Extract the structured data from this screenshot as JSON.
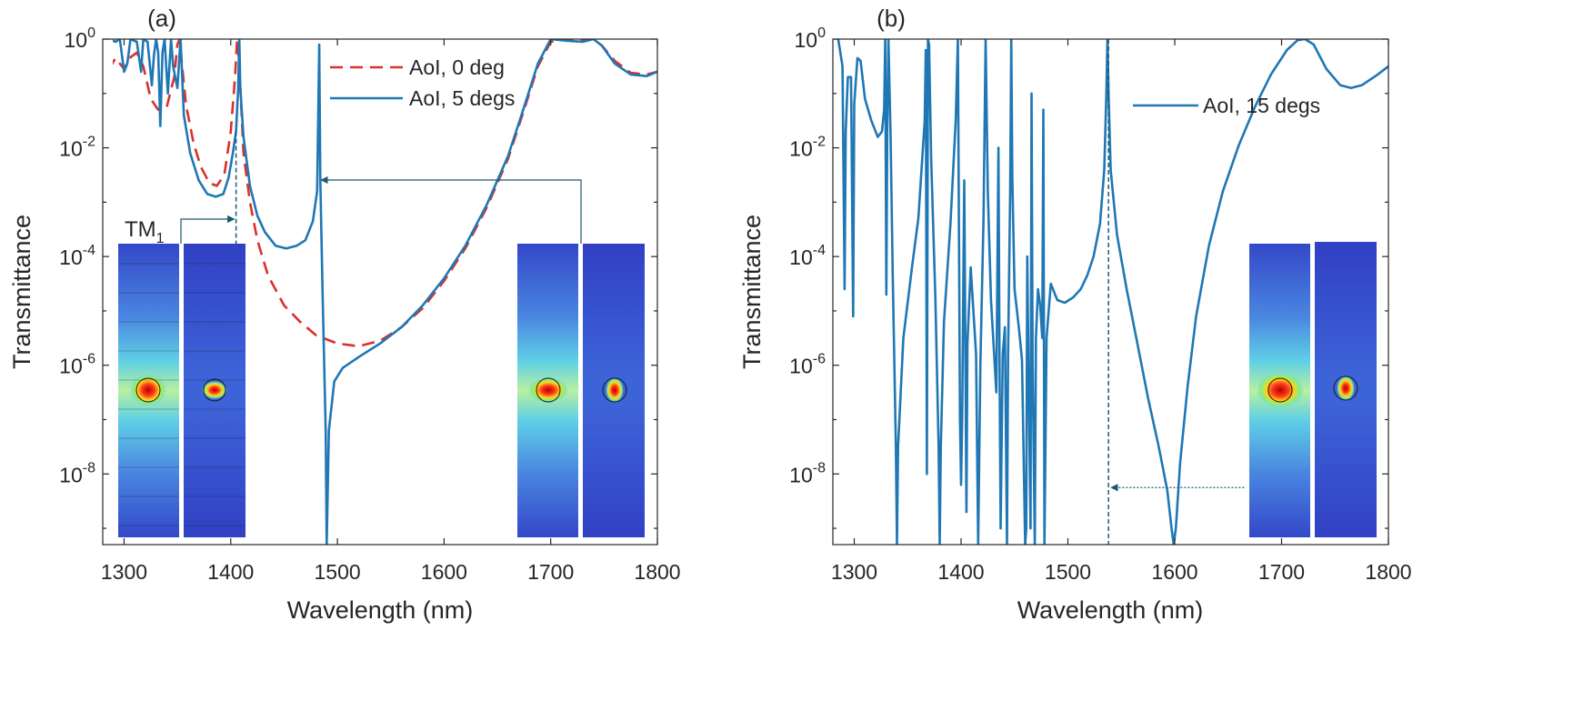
{
  "colors": {
    "solid": "#1f77b4",
    "dashed": "#d9312b",
    "axis": "#262626",
    "annotation": "#1b5a73"
  },
  "chart_data": [
    {
      "panel": "(a)",
      "type": "line",
      "xlabel": "Wavelength (nm)",
      "ylabel": "Transmittance",
      "xlim": [
        1280,
        1800
      ],
      "ylim_log10": [
        -9.3,
        0
      ],
      "xticks": [
        1300,
        1400,
        1500,
        1600,
        1700,
        1800
      ],
      "yticks": [
        {
          "base": "10",
          "exp": "0",
          "log": 0
        },
        {
          "base": "10",
          "exp": "-2",
          "log": -2
        },
        {
          "base": "10",
          "exp": "-4",
          "log": -4
        },
        {
          "base": "10",
          "exp": "-6",
          "log": -6
        },
        {
          "base": "10",
          "exp": "-8",
          "log": -8
        }
      ],
      "legend": {
        "position": "top-right",
        "entries": [
          "AoI, 0 deg",
          "AoI, 5 degs"
        ]
      },
      "annotation": {
        "label": "TM",
        "subscript": "1",
        "marker_x": 1405,
        "arrow_target_x": 1483
      },
      "series": [
        {
          "name": "AoI, 0 deg",
          "style": "dashed",
          "points": [
            [
              1280,
              -1.3
            ],
            [
              1286,
              -0.55
            ],
            [
              1292,
              -0.35
            ],
            [
              1300,
              -0.55
            ],
            [
              1305,
              -0.35
            ],
            [
              1312,
              -0.25
            ],
            [
              1318,
              -0.5
            ],
            [
              1325,
              -1.1
            ],
            [
              1332,
              -1.3
            ],
            [
              1340,
              -1.25
            ],
            [
              1347,
              -0.7
            ],
            [
              1350,
              -0.1
            ],
            [
              1352,
              0
            ],
            [
              1354,
              -0.4
            ],
            [
              1358,
              -1.2
            ],
            [
              1365,
              -1.9
            ],
            [
              1372,
              -2.35
            ],
            [
              1380,
              -2.65
            ],
            [
              1387,
              -2.7
            ],
            [
              1394,
              -2.5
            ],
            [
              1400,
              -1.7
            ],
            [
              1404,
              -0.7
            ],
            [
              1406,
              0
            ],
            [
              1408,
              -0.5
            ],
            [
              1412,
              -2.1
            ],
            [
              1418,
              -3.0
            ],
            [
              1425,
              -3.7
            ],
            [
              1435,
              -4.35
            ],
            [
              1450,
              -4.9
            ],
            [
              1465,
              -5.2
            ],
            [
              1480,
              -5.45
            ],
            [
              1500,
              -5.6
            ],
            [
              1520,
              -5.65
            ],
            [
              1540,
              -5.55
            ],
            [
              1560,
              -5.3
            ],
            [
              1580,
              -4.95
            ],
            [
              1600,
              -4.45
            ],
            [
              1620,
              -3.85
            ],
            [
              1640,
              -3.1
            ],
            [
              1660,
              -2.2
            ],
            [
              1675,
              -1.3
            ],
            [
              1688,
              -0.5
            ],
            [
              1700,
              -0.05
            ],
            [
              1715,
              0
            ],
            [
              1730,
              -0.02
            ],
            [
              1740,
              0
            ],
            [
              1748,
              -0.12
            ],
            [
              1760,
              -0.4
            ],
            [
              1775,
              -0.62
            ],
            [
              1790,
              -0.65
            ],
            [
              1800,
              -0.6
            ]
          ]
        },
        {
          "name": "AoI, 5 degs",
          "style": "solid",
          "points": [
            [
              1280,
              -0.1
            ],
            [
              1286,
              0
            ],
            [
              1292,
              -0.05
            ],
            [
              1296,
              0
            ],
            [
              1300,
              -0.6
            ],
            [
              1303,
              -0.45
            ],
            [
              1306,
              0
            ],
            [
              1312,
              -0.05
            ],
            [
              1316,
              -0.6
            ],
            [
              1318,
              0
            ],
            [
              1322,
              -0.05
            ],
            [
              1326,
              -0.85
            ],
            [
              1328,
              -0.3
            ],
            [
              1330,
              0
            ],
            [
              1332,
              -0.25
            ],
            [
              1334,
              -1.6
            ],
            [
              1336,
              -0.25
            ],
            [
              1338,
              0
            ],
            [
              1341,
              -1.0
            ],
            [
              1344,
              0
            ],
            [
              1346,
              -0.5
            ],
            [
              1350,
              -0.9
            ],
            [
              1353,
              0
            ],
            [
              1356,
              -1.4
            ],
            [
              1362,
              -2.1
            ],
            [
              1370,
              -2.6
            ],
            [
              1378,
              -2.85
            ],
            [
              1386,
              -2.9
            ],
            [
              1393,
              -2.85
            ],
            [
              1398,
              -2.55
            ],
            [
              1402,
              -2.1
            ],
            [
              1405,
              -1.7
            ],
            [
              1407,
              -0.9
            ],
            [
              1408,
              0
            ],
            [
              1409,
              -0.9
            ],
            [
              1412,
              -1.8
            ],
            [
              1418,
              -2.7
            ],
            [
              1425,
              -3.25
            ],
            [
              1432,
              -3.55
            ],
            [
              1442,
              -3.8
            ],
            [
              1452,
              -3.85
            ],
            [
              1462,
              -3.8
            ],
            [
              1470,
              -3.7
            ],
            [
              1477,
              -3.35
            ],
            [
              1481,
              -2.8
            ],
            [
              1483,
              -0.1
            ],
            [
              1484,
              -2.6
            ],
            [
              1486,
              -4.6
            ],
            [
              1489,
              -7.2
            ],
            [
              1490,
              -9.3
            ],
            [
              1492,
              -7.2
            ],
            [
              1497,
              -6.3
            ],
            [
              1505,
              -6.05
            ],
            [
              1520,
              -5.85
            ],
            [
              1540,
              -5.6
            ],
            [
              1560,
              -5.3
            ],
            [
              1580,
              -4.9
            ],
            [
              1600,
              -4.4
            ],
            [
              1620,
              -3.8
            ],
            [
              1640,
              -3.05
            ],
            [
              1660,
              -2.15
            ],
            [
              1675,
              -1.25
            ],
            [
              1688,
              -0.45
            ],
            [
              1700,
              0
            ],
            [
              1715,
              -0.03
            ],
            [
              1730,
              -0.05
            ],
            [
              1740,
              0
            ],
            [
              1748,
              -0.12
            ],
            [
              1760,
              -0.45
            ],
            [
              1775,
              -0.65
            ],
            [
              1790,
              -0.68
            ],
            [
              1800,
              -0.6
            ]
          ]
        }
      ]
    },
    {
      "panel": "(b)",
      "type": "line",
      "xlabel": "Wavelength (nm)",
      "ylabel": "Transmittance",
      "xlim": [
        1280,
        1800
      ],
      "ylim_log10": [
        -9.3,
        0
      ],
      "xticks": [
        1300,
        1400,
        1500,
        1600,
        1700,
        1800
      ],
      "yticks": [
        {
          "base": "10",
          "exp": "0",
          "log": 0
        },
        {
          "base": "10",
          "exp": "-2",
          "log": -2
        },
        {
          "base": "10",
          "exp": "-4",
          "log": -4
        },
        {
          "base": "10",
          "exp": "-6",
          "log": -6
        },
        {
          "base": "10",
          "exp": "-8",
          "log": -8
        }
      ],
      "legend": {
        "position": "top-right",
        "entries": [
          "AoI, 15 degs"
        ]
      },
      "annotation": {
        "marker_x": 1538,
        "arrow_from_x": 1665,
        "arrow_y_log": -8.25
      },
      "series": [
        {
          "name": "AoI, 15 degs",
          "style": "solid",
          "points": [
            [
              1285,
              0
            ],
            [
              1289,
              -0.5
            ],
            [
              1291,
              -4.6
            ],
            [
              1292,
              -1.7
            ],
            [
              1294,
              -0.7
            ],
            [
              1297,
              -0.7
            ],
            [
              1299,
              -5.1
            ],
            [
              1300,
              -1.2
            ],
            [
              1303,
              -0.35
            ],
            [
              1306,
              -0.4
            ],
            [
              1310,
              -1.1
            ],
            [
              1316,
              -1.5
            ],
            [
              1322,
              -1.8
            ],
            [
              1326,
              -1.7
            ],
            [
              1328,
              -1.3
            ],
            [
              1329,
              0
            ],
            [
              1330,
              -4.7
            ],
            [
              1331,
              -1.5
            ],
            [
              1332,
              0
            ],
            [
              1334,
              -1.8
            ],
            [
              1336,
              -4.3
            ],
            [
              1339,
              -7.5
            ],
            [
              1340,
              -9.3
            ],
            [
              1341,
              -7.5
            ],
            [
              1346,
              -5.5
            ],
            [
              1354,
              -4.2
            ],
            [
              1360,
              -3.3
            ],
            [
              1366,
              -1.5
            ],
            [
              1367,
              -0.2
            ],
            [
              1368,
              -8.0
            ],
            [
              1369,
              0
            ],
            [
              1370,
              -0.1
            ],
            [
              1372,
              -2.2
            ],
            [
              1376,
              -4.8
            ],
            [
              1379,
              -7.5
            ],
            [
              1380,
              -9.3
            ],
            [
              1381,
              -7.5
            ],
            [
              1384,
              -5.2
            ],
            [
              1390,
              -3.4
            ],
            [
              1395,
              -1.5
            ],
            [
              1397,
              0
            ],
            [
              1399,
              -7.0
            ],
            [
              1400,
              -8.2
            ],
            [
              1401,
              -7.0
            ],
            [
              1403,
              -2.6
            ],
            [
              1404,
              -5.6
            ],
            [
              1405,
              -8.7
            ],
            [
              1406,
              -5.6
            ],
            [
              1409,
              -4.2
            ],
            [
              1414,
              -5.8
            ],
            [
              1416,
              -9.3
            ],
            [
              1418,
              -6.0
            ],
            [
              1421,
              -3.3
            ],
            [
              1423,
              0
            ],
            [
              1425,
              -2.8
            ],
            [
              1428,
              -4.8
            ],
            [
              1433,
              -6.5
            ],
            [
              1435,
              -2.0
            ],
            [
              1436,
              -6.0
            ],
            [
              1437,
              -9.0
            ],
            [
              1439,
              -5.8
            ],
            [
              1441,
              -5.3
            ],
            [
              1443,
              -9.3
            ],
            [
              1444,
              -5.8
            ],
            [
              1446,
              -2.8
            ],
            [
              1447,
              0
            ],
            [
              1448,
              -2.6
            ],
            [
              1450,
              -4.6
            ],
            [
              1454,
              -5.3
            ],
            [
              1457,
              -5.9
            ],
            [
              1460,
              -9.3
            ],
            [
              1461,
              -9.0
            ],
            [
              1462,
              -4.0
            ],
            [
              1463,
              -5.8
            ],
            [
              1465,
              -9.0
            ],
            [
              1466,
              -1.0
            ],
            [
              1467,
              -6.0
            ],
            [
              1469,
              -9.3
            ],
            [
              1470,
              -5.5
            ],
            [
              1472,
              -4.6
            ],
            [
              1474,
              -4.9
            ],
            [
              1476,
              -5.5
            ],
            [
              1477,
              -1.3
            ],
            [
              1478,
              -9.3
            ],
            [
              1480,
              -5.5
            ],
            [
              1484,
              -4.5
            ],
            [
              1490,
              -4.8
            ],
            [
              1497,
              -4.85
            ],
            [
              1505,
              -4.75
            ],
            [
              1512,
              -4.6
            ],
            [
              1518,
              -4.35
            ],
            [
              1524,
              -4.0
            ],
            [
              1530,
              -3.4
            ],
            [
              1534,
              -2.4
            ],
            [
              1536,
              -1.0
            ],
            [
              1537,
              0
            ],
            [
              1538,
              -1.0
            ],
            [
              1540,
              -2.4
            ],
            [
              1546,
              -3.6
            ],
            [
              1555,
              -4.6
            ],
            [
              1565,
              -5.6
            ],
            [
              1575,
              -6.6
            ],
            [
              1585,
              -7.5
            ],
            [
              1593,
              -8.3
            ],
            [
              1597,
              -9.0
            ],
            [
              1599,
              -9.3
            ],
            [
              1601,
              -9.0
            ],
            [
              1605,
              -7.8
            ],
            [
              1612,
              -6.4
            ],
            [
              1620,
              -5.1
            ],
            [
              1632,
              -3.8
            ],
            [
              1645,
              -2.8
            ],
            [
              1660,
              -1.95
            ],
            [
              1675,
              -1.25
            ],
            [
              1690,
              -0.65
            ],
            [
              1705,
              -0.2
            ],
            [
              1715,
              -0.02
            ],
            [
              1722,
              0
            ],
            [
              1730,
              -0.1
            ],
            [
              1742,
              -0.55
            ],
            [
              1755,
              -0.85
            ],
            [
              1765,
              -0.9
            ],
            [
              1775,
              -0.85
            ],
            [
              1790,
              -0.65
            ],
            [
              1800,
              -0.5
            ]
          ]
        }
      ]
    }
  ]
}
